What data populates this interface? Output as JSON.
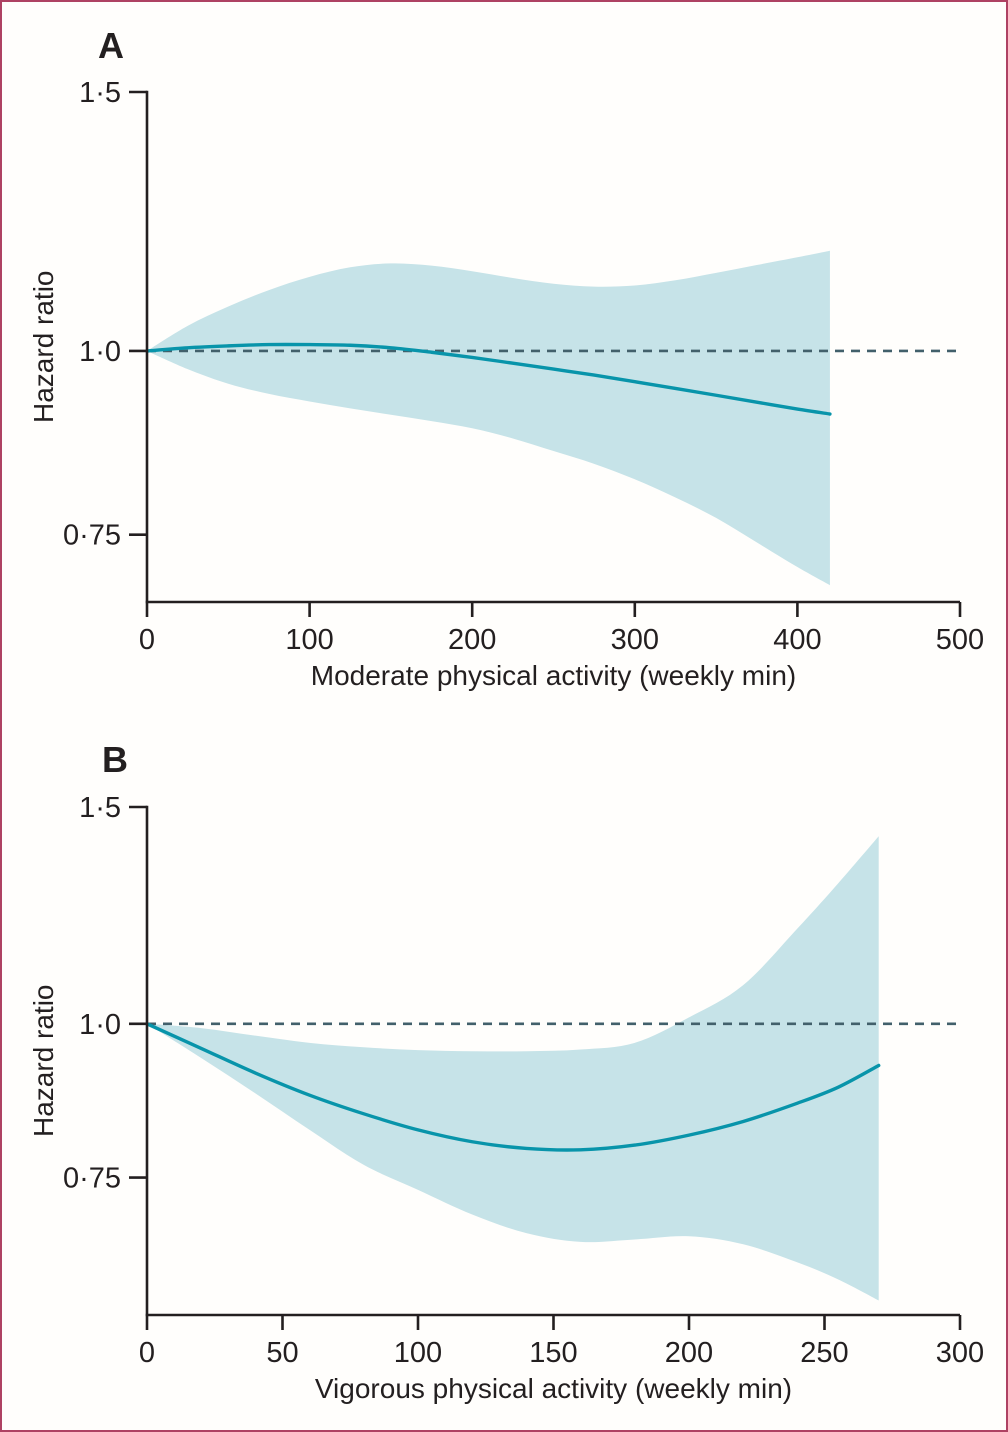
{
  "styles": {
    "line_color": "#0894aa",
    "band_color": "#c6e3e8",
    "ref_line_color": "#42606b",
    "axis_color": "#231f20",
    "border_color": "#ae4263",
    "text_color": "#231f20"
  },
  "chart_data": [
    {
      "panel_label": "A",
      "type": "line",
      "title": "",
      "x_axis": {
        "label": "Moderate physical activity (weekly min)",
        "range": [
          0,
          500
        ],
        "ticks": [
          {
            "value": 0,
            "label": "0"
          },
          {
            "value": 100,
            "label": "100"
          },
          {
            "value": 200,
            "label": "200"
          },
          {
            "value": 300,
            "label": "300"
          },
          {
            "value": 400,
            "label": "400"
          },
          {
            "value": 500,
            "label": "500"
          }
        ]
      },
      "y_axis": {
        "label": "Hazard ratio",
        "scale": "log",
        "range": [
          0.675,
          1.5
        ],
        "ticks": [
          {
            "value": 1.5,
            "label": "1·5"
          },
          {
            "value": 1.0,
            "label": "1·0"
          },
          {
            "value": 0.75,
            "label": "0·75"
          }
        ]
      },
      "reference_line": {
        "value": 1.0,
        "style": "dashed"
      },
      "series": [
        {
          "name": "hazard-ratio-spline",
          "x": [
            0,
            25,
            50,
            75,
            100,
            125,
            150,
            175,
            200,
            225,
            250,
            275,
            300,
            325,
            350,
            375,
            400,
            420
          ],
          "y": [
            1.0,
            1.005,
            1.008,
            1.01,
            1.01,
            1.009,
            1.005,
            0.998,
            0.99,
            0.981,
            0.972,
            0.963,
            0.953,
            0.943,
            0.933,
            0.923,
            0.913,
            0.906
          ]
        }
      ],
      "confidence_band": {
        "name": "95%-CI",
        "x": [
          0,
          25,
          50,
          75,
          100,
          125,
          150,
          175,
          200,
          225,
          250,
          275,
          300,
          325,
          350,
          375,
          400,
          420
        ],
        "upper": [
          1.0,
          1.04,
          1.072,
          1.1,
          1.123,
          1.14,
          1.147,
          1.143,
          1.133,
          1.121,
          1.111,
          1.106,
          1.108,
          1.117,
          1.13,
          1.144,
          1.158,
          1.17
        ],
        "lower": [
          1.0,
          0.972,
          0.95,
          0.935,
          0.924,
          0.914,
          0.905,
          0.896,
          0.886,
          0.872,
          0.855,
          0.838,
          0.818,
          0.795,
          0.77,
          0.741,
          0.713,
          0.693
        ]
      }
    },
    {
      "panel_label": "B",
      "type": "line",
      "title": "",
      "x_axis": {
        "label": "Vigorous physical activity (weekly min)",
        "range": [
          0,
          300
        ],
        "ticks": [
          {
            "value": 0,
            "label": "0"
          },
          {
            "value": 50,
            "label": "50"
          },
          {
            "value": 100,
            "label": "100"
          },
          {
            "value": 150,
            "label": "150"
          },
          {
            "value": 200,
            "label": "200"
          },
          {
            "value": 250,
            "label": "250"
          },
          {
            "value": 300,
            "label": "300"
          }
        ]
      },
      "y_axis": {
        "label": "Hazard ratio",
        "scale": "log",
        "range": [
          0.58,
          1.5
        ],
        "ticks": [
          {
            "value": 1.5,
            "label": "1·5"
          },
          {
            "value": 1.0,
            "label": "1·0"
          },
          {
            "value": 0.75,
            "label": "0·75"
          }
        ]
      },
      "reference_line": {
        "value": 1.0,
        "style": "dashed"
      },
      "series": [
        {
          "name": "hazard-ratio-spline",
          "x": [
            0,
            20,
            40,
            60,
            80,
            100,
            120,
            140,
            160,
            180,
            200,
            220,
            240,
            255,
            270
          ],
          "y": [
            1.0,
            0.955,
            0.912,
            0.875,
            0.845,
            0.82,
            0.802,
            0.792,
            0.79,
            0.797,
            0.812,
            0.833,
            0.862,
            0.888,
            0.925
          ]
        }
      ],
      "confidence_band": {
        "name": "95%-CI",
        "x": [
          0,
          20,
          40,
          60,
          80,
          100,
          120,
          140,
          160,
          180,
          200,
          220,
          240,
          255,
          270
        ],
        "upper": [
          1.0,
          0.992,
          0.978,
          0.965,
          0.957,
          0.952,
          0.95,
          0.95,
          0.953,
          0.965,
          1.012,
          1.075,
          1.195,
          1.3,
          1.42
        ],
        "lower": [
          1.0,
          0.938,
          0.878,
          0.82,
          0.768,
          0.733,
          0.7,
          0.676,
          0.665,
          0.668,
          0.672,
          0.662,
          0.64,
          0.62,
          0.596
        ]
      }
    }
  ]
}
